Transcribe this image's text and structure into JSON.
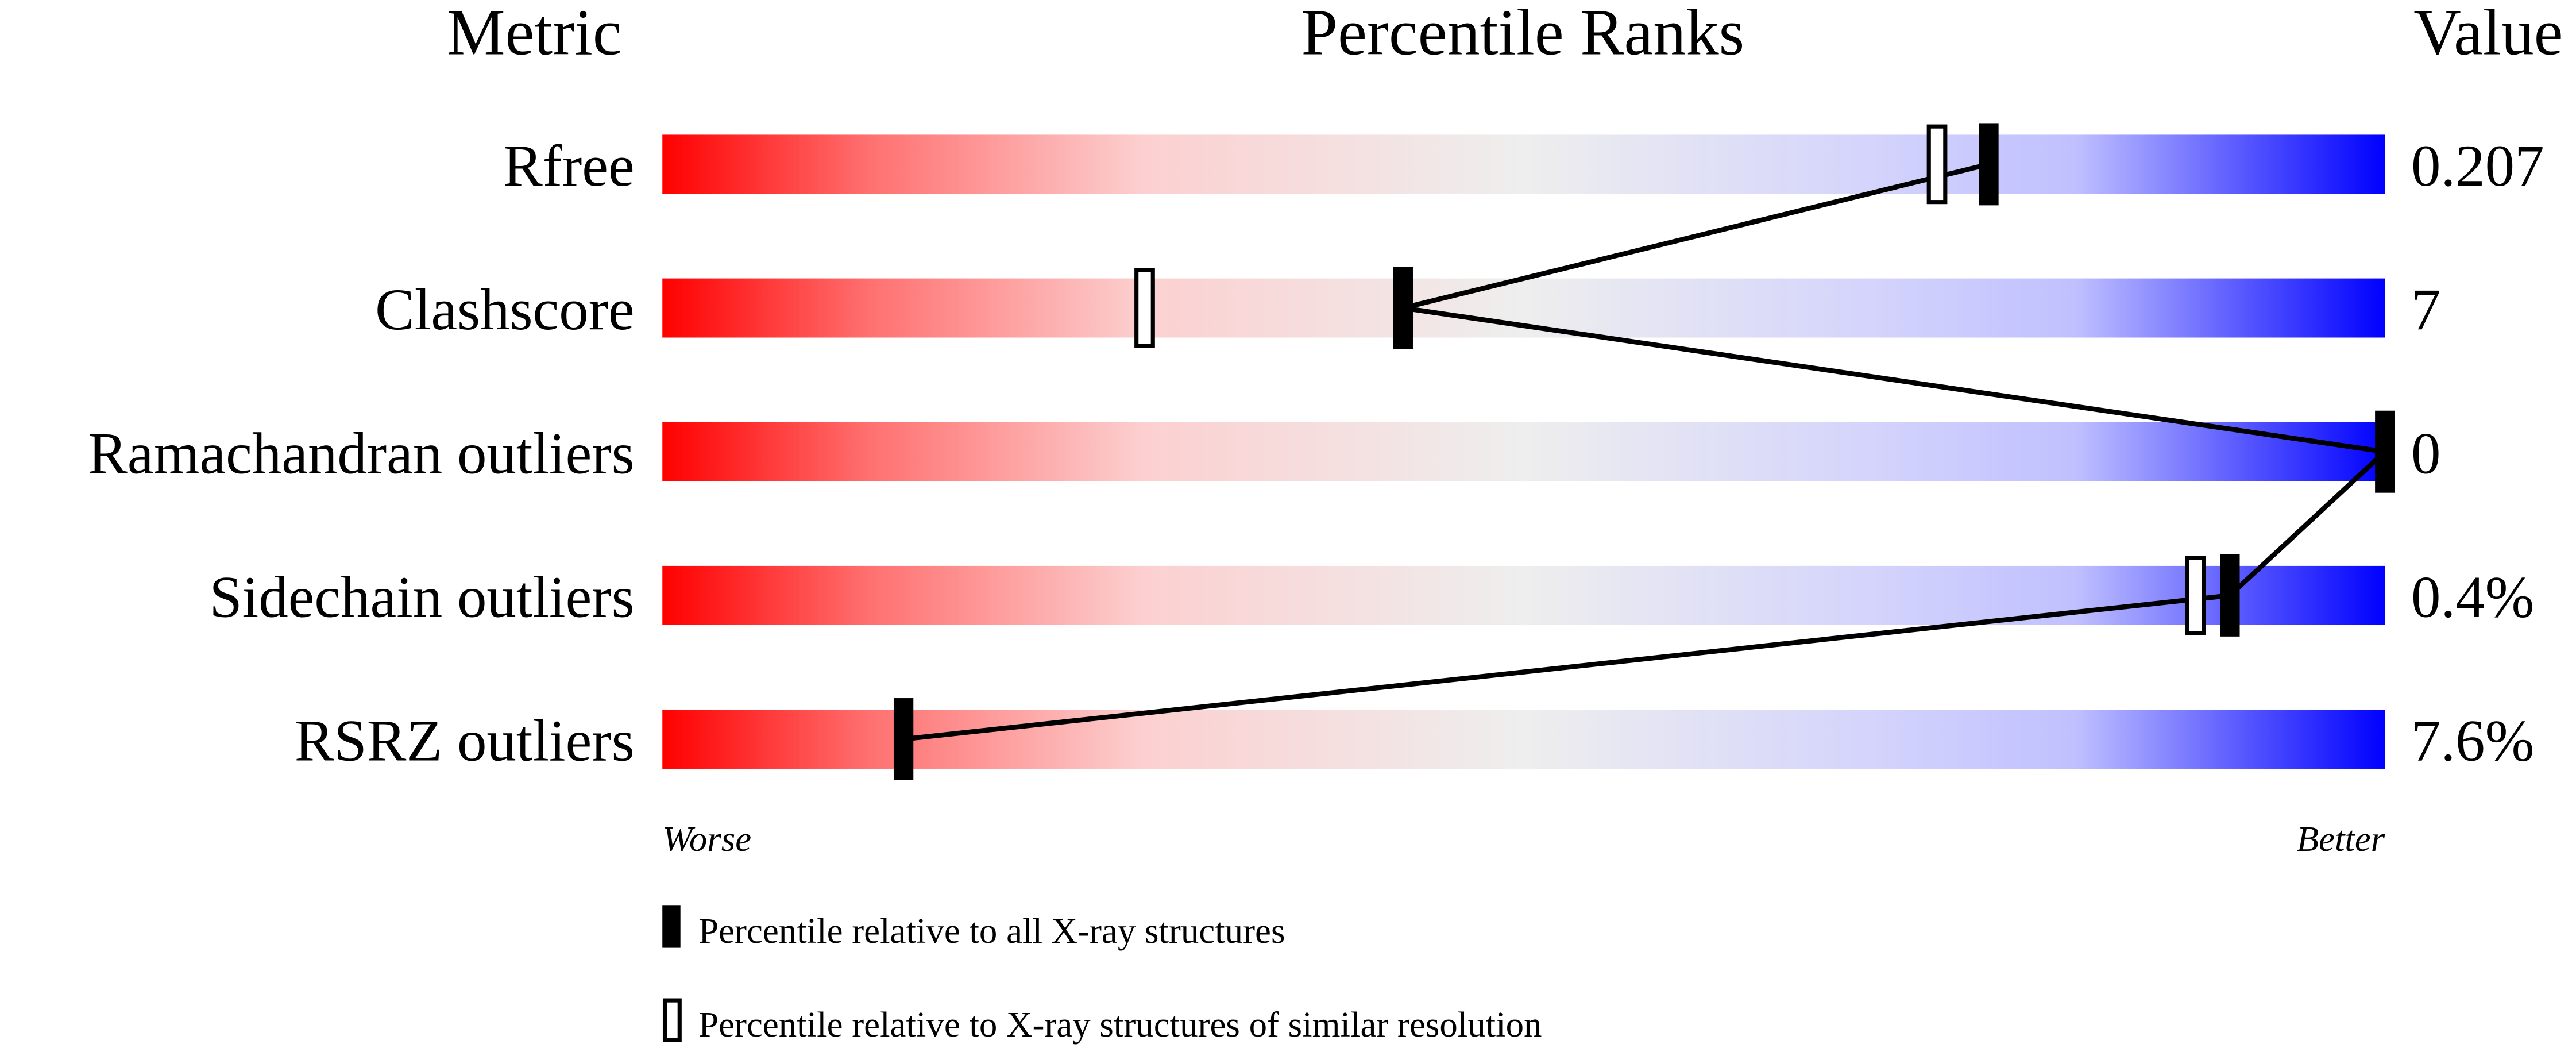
{
  "chart_data": {
    "type": "percentile-slider",
    "headers": {
      "metric": "Metric",
      "ranks": "Percentile Ranks",
      "value": "Value"
    },
    "xlim": [
      0,
      100
    ],
    "axis_notes": {
      "left": "Worse",
      "right": "Better"
    },
    "gradient_colors": [
      "#ff0000",
      "#f5f5f5",
      "#0000ff"
    ],
    "metrics": [
      {
        "name": "Rfree",
        "value": "0.207",
        "percentile_all": 77,
        "percentile_similar": 74
      },
      {
        "name": "Clashscore",
        "value": "7",
        "percentile_all": 43,
        "percentile_similar": 28
      },
      {
        "name": "Ramachandran outliers",
        "value": "0",
        "percentile_all": 100,
        "percentile_similar": null
      },
      {
        "name": "Sidechain outliers",
        "value": "0.4%",
        "percentile_all": 91,
        "percentile_similar": 89
      },
      {
        "name": "RSRZ outliers",
        "value": "7.6%",
        "percentile_all": 14,
        "percentile_similar": null
      }
    ],
    "legend": [
      {
        "marker": "filled",
        "label": "Percentile relative to all X-ray structures"
      },
      {
        "marker": "hollow",
        "label": "Percentile relative to X-ray structures of similar resolution"
      }
    ]
  }
}
